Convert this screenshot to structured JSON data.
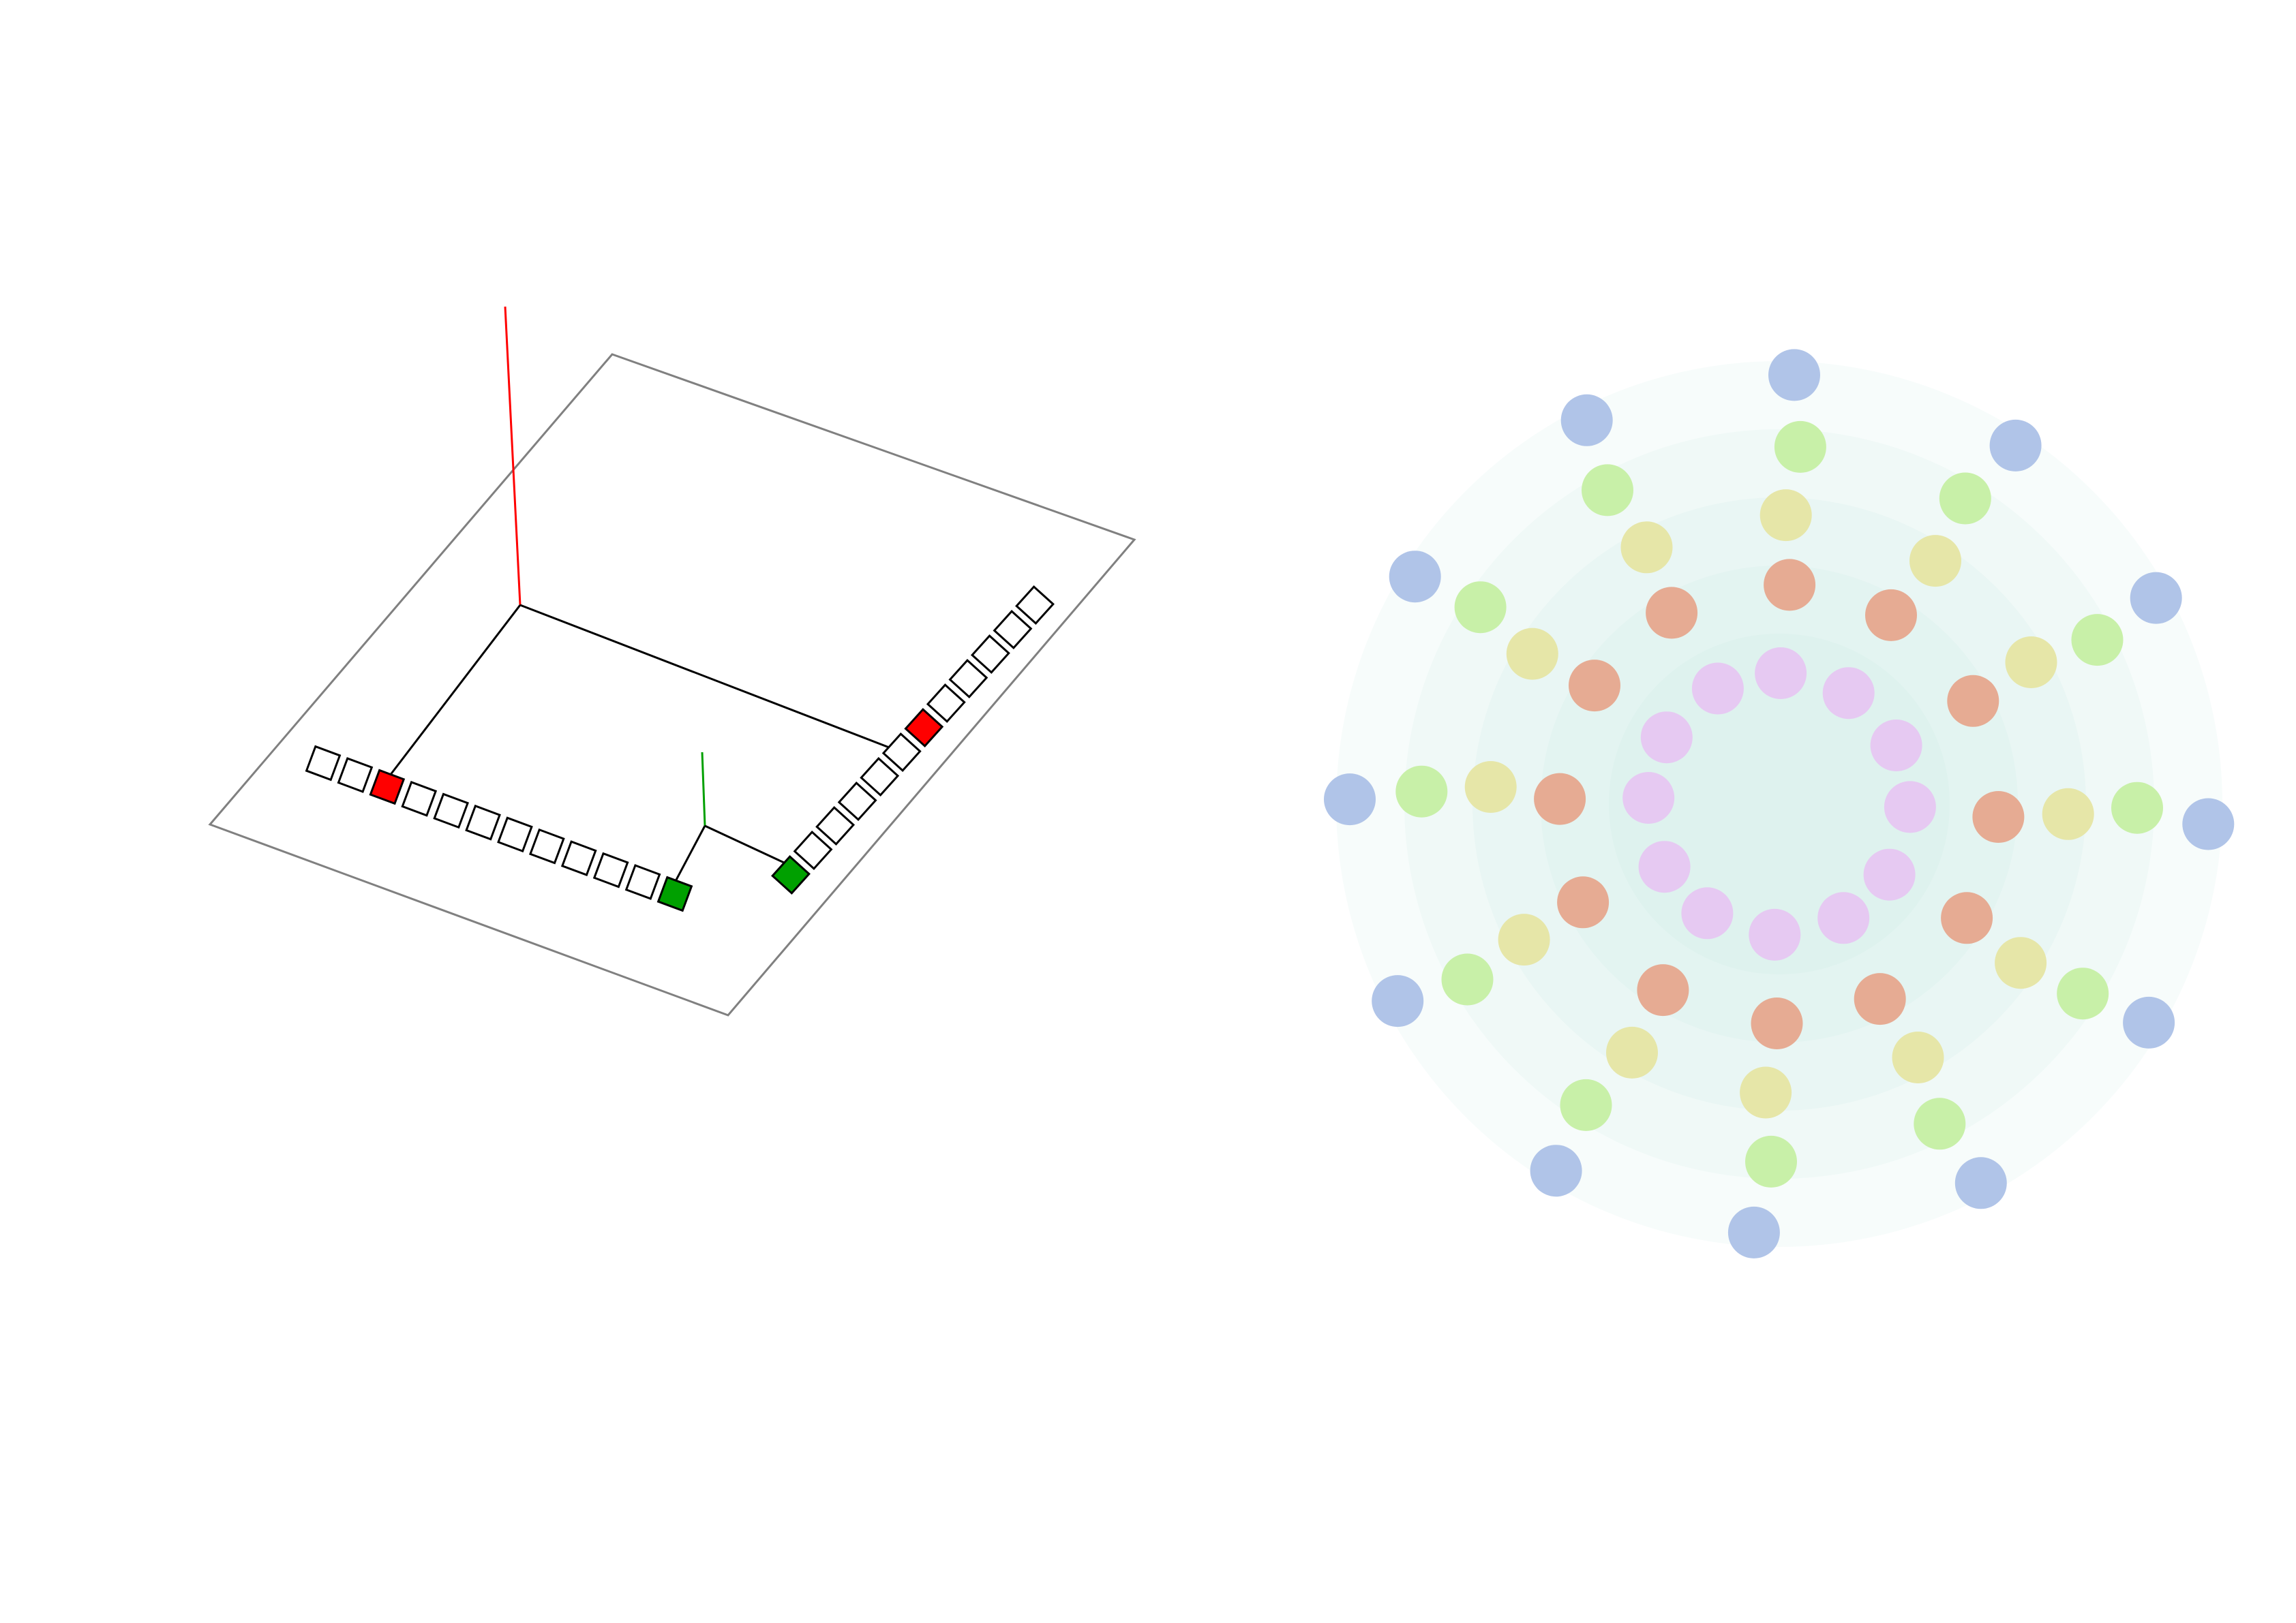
{
  "colors": {
    "background": "#ffffff",
    "plane_border": "#808080",
    "connector": "#000000",
    "red": "#ff0000",
    "green": "#00a000",
    "cell_stroke": "#000000",
    "cell_fill": "#ffffff",
    "ring_fill": "#bfe6df",
    "spoke_colors": [
      "#e6c9f2",
      "#e6ab93",
      "#e6e6a8",
      "#c8f0a8",
      "#b0c4e8"
    ]
  },
  "left_panel": {
    "description_elements": [
      "projection-plane",
      "red-axis-line",
      "green-axis-line"
    ],
    "sequence_a": {
      "cell_count": 12,
      "highlight_red_index": 2,
      "highlight_green_index": 11
    },
    "sequence_b": {
      "cell_count": 12,
      "highlight_red_index": 6,
      "highlight_green_index": 0
    }
  },
  "right_panel": {
    "ring_count": 5,
    "spoke_count": 12,
    "dots_per_spoke": 5
  }
}
